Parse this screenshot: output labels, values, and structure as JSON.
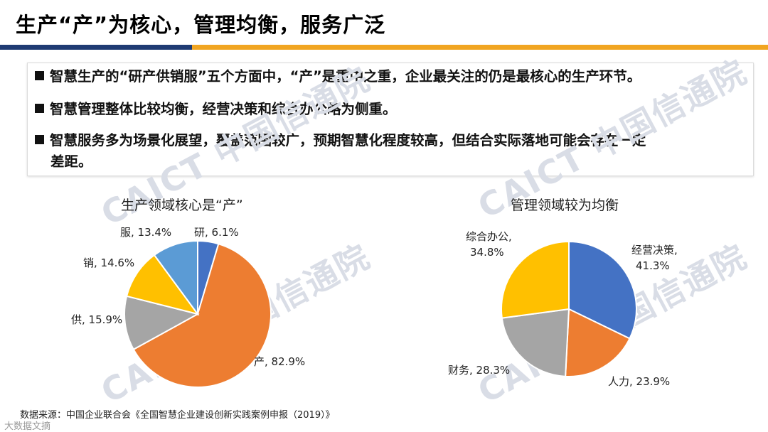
{
  "page": {
    "title": "生产“产”为核心，管理均衡，服务广泛",
    "bullets": [
      "智慧生产的“研产供销服”五个方面中，“产”是重中之重，企业最关注的仍是最核心的生产环节。",
      "智慧管理整体比较均衡，经营决策和综合办公略为侧重。",
      "智慧服务多为场景化展望，覆盖范围较广，预期智慧化程度较高，但结合实际落地可能会存在一定"
    ],
    "bullet3_cont": "差距。",
    "source": "数据来源：中国企业联合会《全国智慧企业建设创新实践案例申报（2019）》",
    "logo": "大数据文摘",
    "watermarks": [
      "CAICT 中国信通院",
      "CAICT 中国信通院",
      "CAICT 中国信通院",
      "CAICT 中国信通院"
    ]
  },
  "chart_data": [
    {
      "type": "pie",
      "title": "生产领域核心是“产”",
      "slices": [
        {
          "name": "研",
          "value": 6.1,
          "label": "研, 6.1%",
          "color": "#4472c4"
        },
        {
          "name": "产",
          "value": 82.9,
          "label": "产, 82.9%",
          "color": "#ed7d31"
        },
        {
          "name": "供",
          "value": 15.9,
          "label": "供, 15.9%",
          "color": "#a5a5a5"
        },
        {
          "name": "销",
          "value": 14.6,
          "label": "销, 14.6%",
          "color": "#ffc000"
        },
        {
          "name": "服",
          "value": 13.4,
          "label": "服, 13.4%",
          "color": "#5b9bd5"
        }
      ]
    },
    {
      "type": "pie",
      "title": "管理领域较为均衡",
      "slices": [
        {
          "name": "经营决策",
          "value": 41.3,
          "label_lines": [
            "经营决策,",
            "41.3%"
          ],
          "color": "#4472c4"
        },
        {
          "name": "人力",
          "value": 23.9,
          "label_lines": [
            "人力, 23.9%"
          ],
          "color": "#ed7d31"
        },
        {
          "name": "财务",
          "value": 28.3,
          "label_lines": [
            "财务, 28.3%"
          ],
          "color": "#a5a5a5"
        },
        {
          "name": "综合办公",
          "value": 34.8,
          "label_lines": [
            "综合办公,",
            "34.8%"
          ],
          "color": "#ffc000"
        }
      ]
    }
  ]
}
